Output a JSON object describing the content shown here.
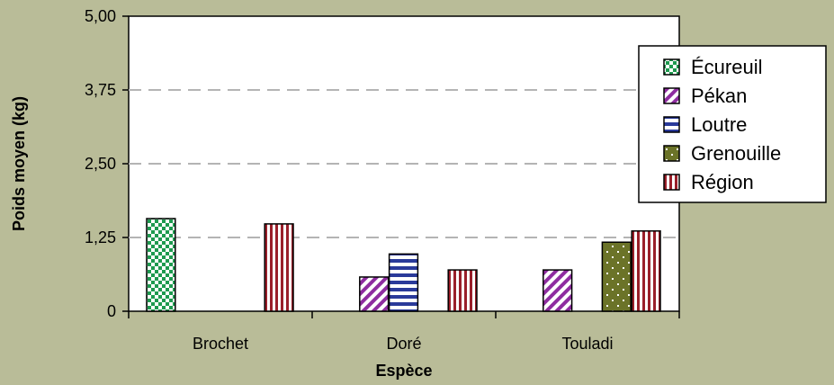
{
  "chart_data": {
    "type": "bar",
    "xlabel": "Espèce",
    "ylabel": "Poids moyen (kg)",
    "categories": [
      "Brochet",
      "Doré",
      "Touladi"
    ],
    "yticks": [
      "0",
      "1,25",
      "2,50",
      "3,75",
      "5,00"
    ],
    "ylim": [
      0,
      5
    ],
    "grid": true,
    "legend_position": "right",
    "series": [
      {
        "name": "Écureuil",
        "values": [
          1.57,
          null,
          null
        ],
        "color": "#1e9a4f",
        "pattern": "checker"
      },
      {
        "name": "Pékan",
        "values": [
          null,
          0.58,
          0.7
        ],
        "color": "#8e2ca0",
        "pattern": "diagonal"
      },
      {
        "name": "Loutre",
        "values": [
          null,
          0.97,
          null
        ],
        "color": "#2a3a9a",
        "pattern": "horizontal"
      },
      {
        "name": "Grenouille",
        "values": [
          null,
          null,
          1.17
        ],
        "color": "#6b7328",
        "pattern": "dots"
      },
      {
        "name": "Région",
        "values": [
          1.48,
          0.7,
          1.36
        ],
        "color": "#9a1f2a",
        "pattern": "vertical"
      }
    ]
  }
}
